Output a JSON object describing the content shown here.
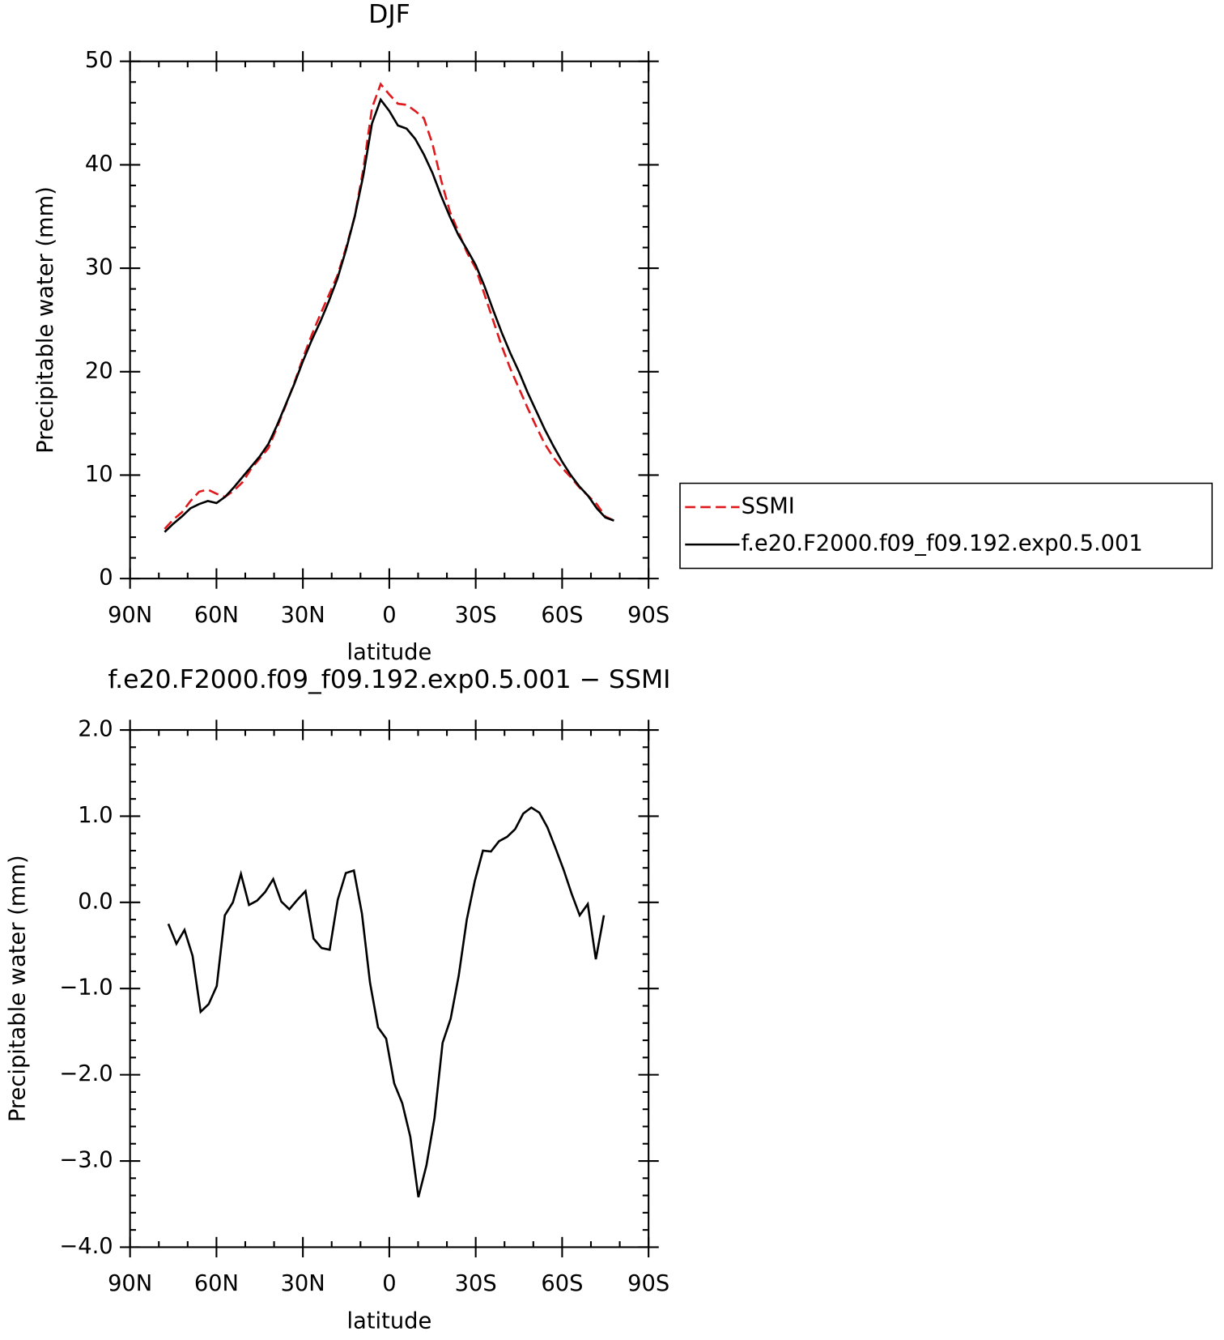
{
  "chart_data": [
    {
      "type": "line",
      "title": "DJF",
      "xlabel": "latitude",
      "ylabel": "Precipitable water (mm)",
      "xlim": [
        90,
        -90
      ],
      "xticks": [
        {
          "value": 90,
          "label": "90N"
        },
        {
          "value": 60,
          "label": "60N"
        },
        {
          "value": 30,
          "label": "30N"
        },
        0,
        {
          "value": -30,
          "label": "30S"
        },
        {
          "value": -60,
          "label": "60S"
        },
        {
          "value": -90,
          "label": "90S"
        }
      ],
      "ylim": [
        0,
        50
      ],
      "yticks": [
        0,
        10,
        20,
        30,
        40,
        50
      ],
      "legend": "right",
      "x": [
        78,
        75,
        72,
        69,
        66,
        63,
        60,
        57,
        54,
        51,
        48,
        45,
        42,
        39,
        36,
        33,
        30,
        27,
        24,
        21,
        18,
        15,
        12,
        9,
        6,
        3,
        0,
        -3,
        -6,
        -9,
        -12,
        -15,
        -18,
        -21,
        -24,
        -27,
        -30,
        -33,
        -36,
        -39,
        -42,
        -45,
        -48,
        -51,
        -54,
        -57,
        -60,
        -63,
        -66,
        -69,
        -72,
        -75,
        -78
      ],
      "series": [
        {
          "name": "SSMI",
          "color": "#e0191c",
          "dash": true,
          "values": [
            4.8,
            5.7,
            6.4,
            7.5,
            8.4,
            8.6,
            8.2,
            7.9,
            8.5,
            9.3,
            10.6,
            11.6,
            12.6,
            14.6,
            16.7,
            18.9,
            21.3,
            23.5,
            25.5,
            27.4,
            29.3,
            32.0,
            35.0,
            39.6,
            45.5,
            47.8,
            46.8,
            45.9,
            45.8,
            45.2,
            44.5,
            42.0,
            38.5,
            35.5,
            33.5,
            31.5,
            30.0,
            27.5,
            25.0,
            22.5,
            20.3,
            18.4,
            16.5,
            14.7,
            13.0,
            11.7,
            10.7,
            9.8,
            8.8,
            8.0,
            7.2,
            6.0,
            5.6
          ]
        },
        {
          "name": "f.e20.F2000.f09_f09.192.exp0.5.001",
          "color": "#000000",
          "dash": false,
          "values": [
            4.5,
            5.3,
            6.0,
            6.8,
            7.2,
            7.5,
            7.3,
            7.9,
            8.8,
            9.8,
            10.8,
            11.8,
            13.0,
            14.8,
            16.8,
            18.8,
            21.0,
            23.0,
            24.8,
            26.8,
            29.0,
            31.8,
            35.0,
            39.0,
            44.0,
            46.3,
            45.2,
            43.8,
            43.5,
            42.5,
            41.0,
            39.2,
            37.0,
            35.0,
            33.2,
            31.8,
            30.3,
            28.3,
            26.0,
            23.8,
            21.8,
            20.0,
            18.0,
            16.2,
            14.4,
            12.8,
            11.3,
            10.0,
            8.9,
            8.0,
            6.8,
            5.9,
            5.6
          ]
        }
      ]
    },
    {
      "type": "line",
      "title": "f.e20.F2000.f09_f09.192.exp0.5.001 − SSMI",
      "xlabel": "latitude",
      "ylabel": "Precipitable water (mm)",
      "xlim": [
        90,
        -90
      ],
      "xticks": [
        {
          "value": 90,
          "label": "90N"
        },
        {
          "value": 60,
          "label": "60N"
        },
        {
          "value": 30,
          "label": "30N"
        },
        0,
        {
          "value": -30,
          "label": "30S"
        },
        {
          "value": -60,
          "label": "60S"
        },
        {
          "value": -90,
          "label": "90S"
        }
      ],
      "ylim": [
        -4,
        2
      ],
      "yticks": [
        {
          "value": -4,
          "label": "−4.0"
        },
        {
          "value": -3,
          "label": "−3.0"
        },
        {
          "value": -2,
          "label": "−2.0"
        },
        {
          "value": -1,
          "label": "−1.0"
        },
        {
          "value": 0,
          "label": "0.0"
        },
        {
          "value": 1,
          "label": "1.0"
        },
        {
          "value": 2,
          "label": "2.0"
        }
      ],
      "x": [
        76.7,
        73.9,
        71.1,
        68.3,
        65.5,
        62.7,
        59.9,
        57.1,
        54.3,
        51.5,
        48.7,
        45.9,
        43.1,
        40.3,
        37.5,
        34.7,
        31.9,
        29.1,
        26.3,
        23.5,
        20.7,
        17.9,
        15.1,
        12.3,
        9.5,
        6.7,
        3.9,
        1.1,
        -1.7,
        -4.5,
        -7.3,
        -10.1,
        -12.9,
        -15.7,
        -18.5,
        -21.3,
        -24.1,
        -26.9,
        -29.7,
        -32.5,
        -35.3,
        -38.1,
        -40.9,
        -43.7,
        -46.5,
        -49.3,
        -52.1,
        -54.9,
        -57.7,
        -60.5,
        -63.3,
        -66.1,
        -68.9,
        -71.7,
        -74.5
      ],
      "series": [
        {
          "color": "#000000",
          "dash": false,
          "values": [
            -0.25,
            -0.48,
            -0.32,
            -0.62,
            -1.27,
            -1.18,
            -0.97,
            -0.15,
            0,
            0.33,
            -0.03,
            0.02,
            0.12,
            0.27,
            0.01,
            -0.08,
            0.03,
            0.13,
            -0.42,
            -0.53,
            -0.55,
            0.03,
            0.34,
            0.37,
            -0.13,
            -0.93,
            -1.45,
            -1.58,
            -2.1,
            -2.33,
            -2.72,
            -3.42,
            -3.05,
            -2.5,
            -1.63,
            -1.35,
            -0.85,
            -0.2,
            0.25,
            0.6,
            0.59,
            0.71,
            0.76,
            0.85,
            1.03,
            1.1,
            1.04,
            0.87,
            0.63,
            0.38,
            0.1,
            -0.15,
            -0.02,
            -0.66,
            -0.15
          ]
        }
      ]
    }
  ]
}
